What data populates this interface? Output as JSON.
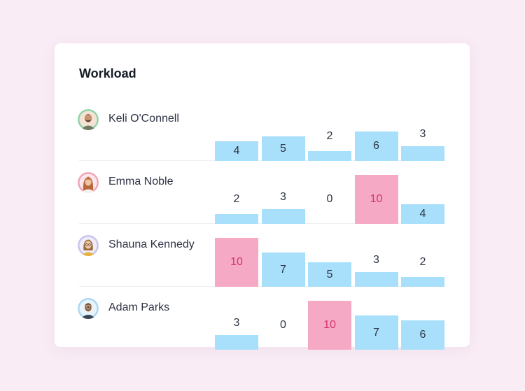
{
  "title": "Workload",
  "colors": {
    "normal_bar": "#a8dffa",
    "overload_bar": "#f6a9c4",
    "normal_text": "#2e3445",
    "overload_text": "#d2336e"
  },
  "chart_data": {
    "type": "bar",
    "title": "Workload",
    "ylim": [
      0,
      10
    ],
    "overload_threshold": 10,
    "rows": [
      {
        "name": "Keli O'Connell",
        "values": [
          4,
          5,
          2,
          6,
          3
        ]
      },
      {
        "name": "Emma Noble",
        "values": [
          2,
          3,
          0,
          10,
          4
        ]
      },
      {
        "name": "Shauna Kennedy",
        "values": [
          10,
          7,
          5,
          3,
          2
        ]
      },
      {
        "name": "Adam Parks",
        "values": [
          3,
          0,
          10,
          7,
          6
        ]
      }
    ]
  }
}
